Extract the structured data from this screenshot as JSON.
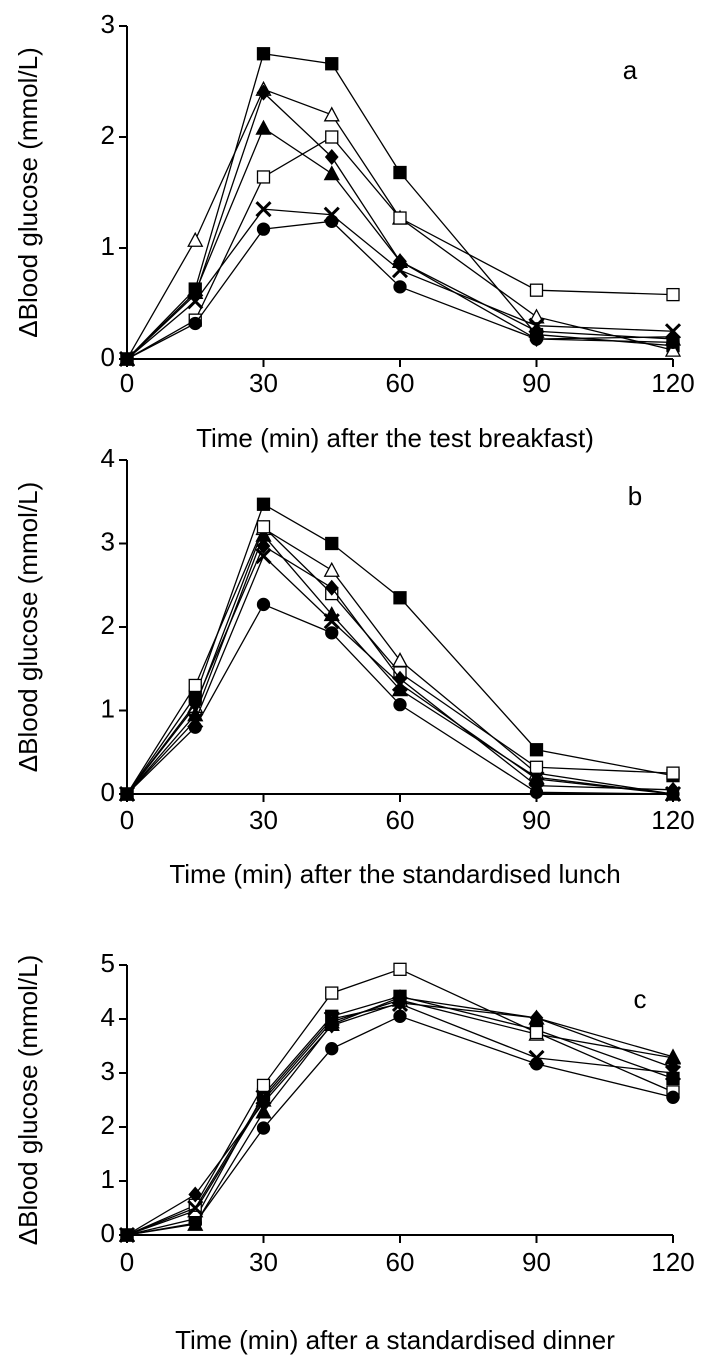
{
  "chart_data": [
    {
      "type": "line",
      "label": "a",
      "ylabel": "ΔBlood glucose (mmol/L)",
      "xlabel": "Time (min) after the test breakfast)",
      "x": [
        0,
        15,
        30,
        45,
        60,
        90,
        120
      ],
      "xlim": [
        0,
        120
      ],
      "xticks": [
        0,
        30,
        60,
        90,
        120
      ],
      "ylim": [
        0,
        3
      ],
      "yticks": [
        0,
        1,
        2,
        3
      ],
      "series": [
        {
          "color": "#000000",
          "marker": "square",
          "filled": true,
          "values": [
            0,
            0.63,
            2.75,
            2.66,
            1.68,
            0.22,
            0.12
          ]
        },
        {
          "color": "#000000",
          "marker": "triangle",
          "filled": false,
          "values": [
            0,
            1.07,
            2.43,
            2.2,
            1.27,
            0.38,
            0.08
          ]
        },
        {
          "color": "#000000",
          "marker": "triangle",
          "filled": true,
          "values": [
            0,
            0.6,
            2.08,
            1.67,
            0.88,
            0.25,
            0.18
          ]
        },
        {
          "color": "#000000",
          "marker": "square",
          "filled": false,
          "values": [
            0,
            0.35,
            1.64,
            2.0,
            1.27,
            0.62,
            0.58
          ]
        },
        {
          "color": "#000000",
          "marker": "diamond",
          "filled": true,
          "values": [
            0,
            0.58,
            2.4,
            1.82,
            0.88,
            0.18,
            0.2
          ]
        },
        {
          "color": "#000000",
          "marker": "cross",
          "filled": true,
          "values": [
            0,
            0.52,
            1.35,
            1.3,
            0.8,
            0.3,
            0.25
          ]
        },
        {
          "color": "#000000",
          "marker": "circle",
          "filled": true,
          "values": [
            0,
            0.32,
            1.17,
            1.24,
            0.65,
            0.18,
            0.15
          ]
        }
      ]
    },
    {
      "type": "line",
      "label": "b",
      "ylabel": "ΔBlood glucose (mmol/L)",
      "xlabel": "Time (min) after the standardised lunch",
      "x": [
        0,
        15,
        30,
        45,
        60,
        90,
        120
      ],
      "xlim": [
        0,
        120
      ],
      "xticks": [
        0,
        30,
        60,
        90,
        120
      ],
      "ylim": [
        0,
        4
      ],
      "yticks": [
        0,
        1,
        2,
        3,
        4
      ],
      "series": [
        {
          "color": "#000000",
          "marker": "square",
          "filled": true,
          "values": [
            0,
            1.17,
            3.47,
            3.0,
            2.35,
            0.53,
            0.22
          ]
        },
        {
          "color": "#000000",
          "marker": "triangle",
          "filled": false,
          "values": [
            0,
            1.05,
            3.18,
            2.68,
            1.6,
            0.25,
            0.0
          ]
        },
        {
          "color": "#000000",
          "marker": "triangle",
          "filled": true,
          "values": [
            0,
            0.95,
            3.1,
            2.15,
            1.25,
            0.2,
            0.0
          ]
        },
        {
          "color": "#000000",
          "marker": "square",
          "filled": false,
          "values": [
            0,
            1.3,
            3.2,
            2.4,
            1.45,
            0.32,
            0.25
          ]
        },
        {
          "color": "#000000",
          "marker": "diamond",
          "filled": true,
          "values": [
            0,
            1.08,
            2.97,
            2.47,
            1.38,
            0.1,
            0.05
          ]
        },
        {
          "color": "#000000",
          "marker": "cross",
          "filled": true,
          "values": [
            0,
            0.88,
            2.85,
            2.07,
            1.32,
            0.18,
            0.0
          ]
        },
        {
          "color": "#000000",
          "marker": "circle",
          "filled": true,
          "values": [
            0,
            0.8,
            2.27,
            1.93,
            1.07,
            0.02,
            0.0
          ]
        }
      ]
    },
    {
      "type": "line",
      "label": "c",
      "ylabel": "ΔBlood glucose (mmol/L)",
      "xlabel": "Time (min) after a standardised dinner",
      "x": [
        0,
        15,
        30,
        45,
        60,
        90,
        120
      ],
      "xlim": [
        0,
        120
      ],
      "xticks": [
        0,
        30,
        60,
        90,
        120
      ],
      "ylim": [
        0,
        5
      ],
      "yticks": [
        0,
        1,
        2,
        3,
        4,
        5
      ],
      "series": [
        {
          "color": "#000000",
          "marker": "square",
          "filled": true,
          "values": [
            0,
            0.3,
            2.6,
            4.05,
            4.42,
            3.8,
            2.9
          ]
        },
        {
          "color": "#000000",
          "marker": "triangle",
          "filled": false,
          "values": [
            0,
            0.45,
            2.5,
            3.95,
            4.35,
            3.72,
            3.28
          ]
        },
        {
          "color": "#000000",
          "marker": "triangle",
          "filled": true,
          "values": [
            0,
            0.2,
            2.28,
            3.9,
            4.4,
            4.02,
            3.3
          ]
        },
        {
          "color": "#000000",
          "marker": "square",
          "filled": false,
          "values": [
            0,
            0.55,
            2.77,
            4.48,
            4.92,
            3.75,
            2.65
          ]
        },
        {
          "color": "#000000",
          "marker": "diamond",
          "filled": true,
          "values": [
            0,
            0.75,
            2.45,
            3.88,
            4.3,
            4.02,
            3.1
          ]
        },
        {
          "color": "#000000",
          "marker": "cross",
          "filled": true,
          "values": [
            0,
            0.5,
            2.55,
            4.0,
            4.28,
            3.28,
            3.0
          ]
        },
        {
          "color": "#000000",
          "marker": "circle",
          "filled": true,
          "values": [
            0,
            0.22,
            1.98,
            3.45,
            4.05,
            3.17,
            2.55
          ]
        }
      ]
    }
  ]
}
